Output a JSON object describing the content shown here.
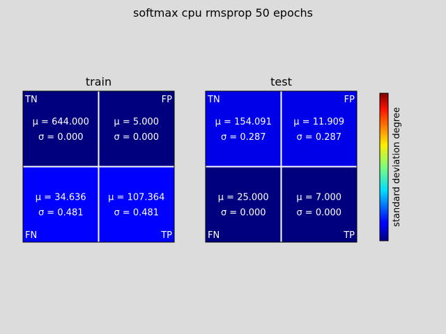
{
  "figure": {
    "title": "softmax cpu rmsprop 50 epochs"
  },
  "colorbar": {
    "label": "standard deviation degree",
    "colormap": "jet"
  },
  "colors": {
    "background": "#dcdcdc",
    "grid": "#ffffff",
    "text_on_cell": "#ffffff"
  },
  "chart_data": [
    {
      "type": "heatmap",
      "title": "train",
      "rows": [
        "TN/FP",
        "FN/TP"
      ],
      "cells": [
        {
          "label": "TN",
          "label_corner": "top-left",
          "mu": "644.000",
          "sigma": "0.000",
          "color": "#00007f"
        },
        {
          "label": "FP",
          "label_corner": "top-right",
          "mu": "5.000",
          "sigma": "0.000",
          "color": "#00007f"
        },
        {
          "label": "FN",
          "label_corner": "bottom-left",
          "mu": "34.636",
          "sigma": "0.481",
          "color": "#0000ff"
        },
        {
          "label": "TP",
          "label_corner": "bottom-right",
          "mu": "107.364",
          "sigma": "0.481",
          "color": "#0000ff"
        }
      ]
    },
    {
      "type": "heatmap",
      "title": "test",
      "rows": [
        "TN/FP",
        "FN/TP"
      ],
      "cells": [
        {
          "label": "TN",
          "label_corner": "top-left",
          "mu": "154.091",
          "sigma": "0.287",
          "color": "#0000e8"
        },
        {
          "label": "FP",
          "label_corner": "top-right",
          "mu": "11.909",
          "sigma": "0.287",
          "color": "#0000e8"
        },
        {
          "label": "FN",
          "label_corner": "bottom-left",
          "mu": "25.000",
          "sigma": "0.000",
          "color": "#00007f"
        },
        {
          "label": "TP",
          "label_corner": "bottom-right",
          "mu": "7.000",
          "sigma": "0.000",
          "color": "#00007f"
        }
      ]
    }
  ]
}
